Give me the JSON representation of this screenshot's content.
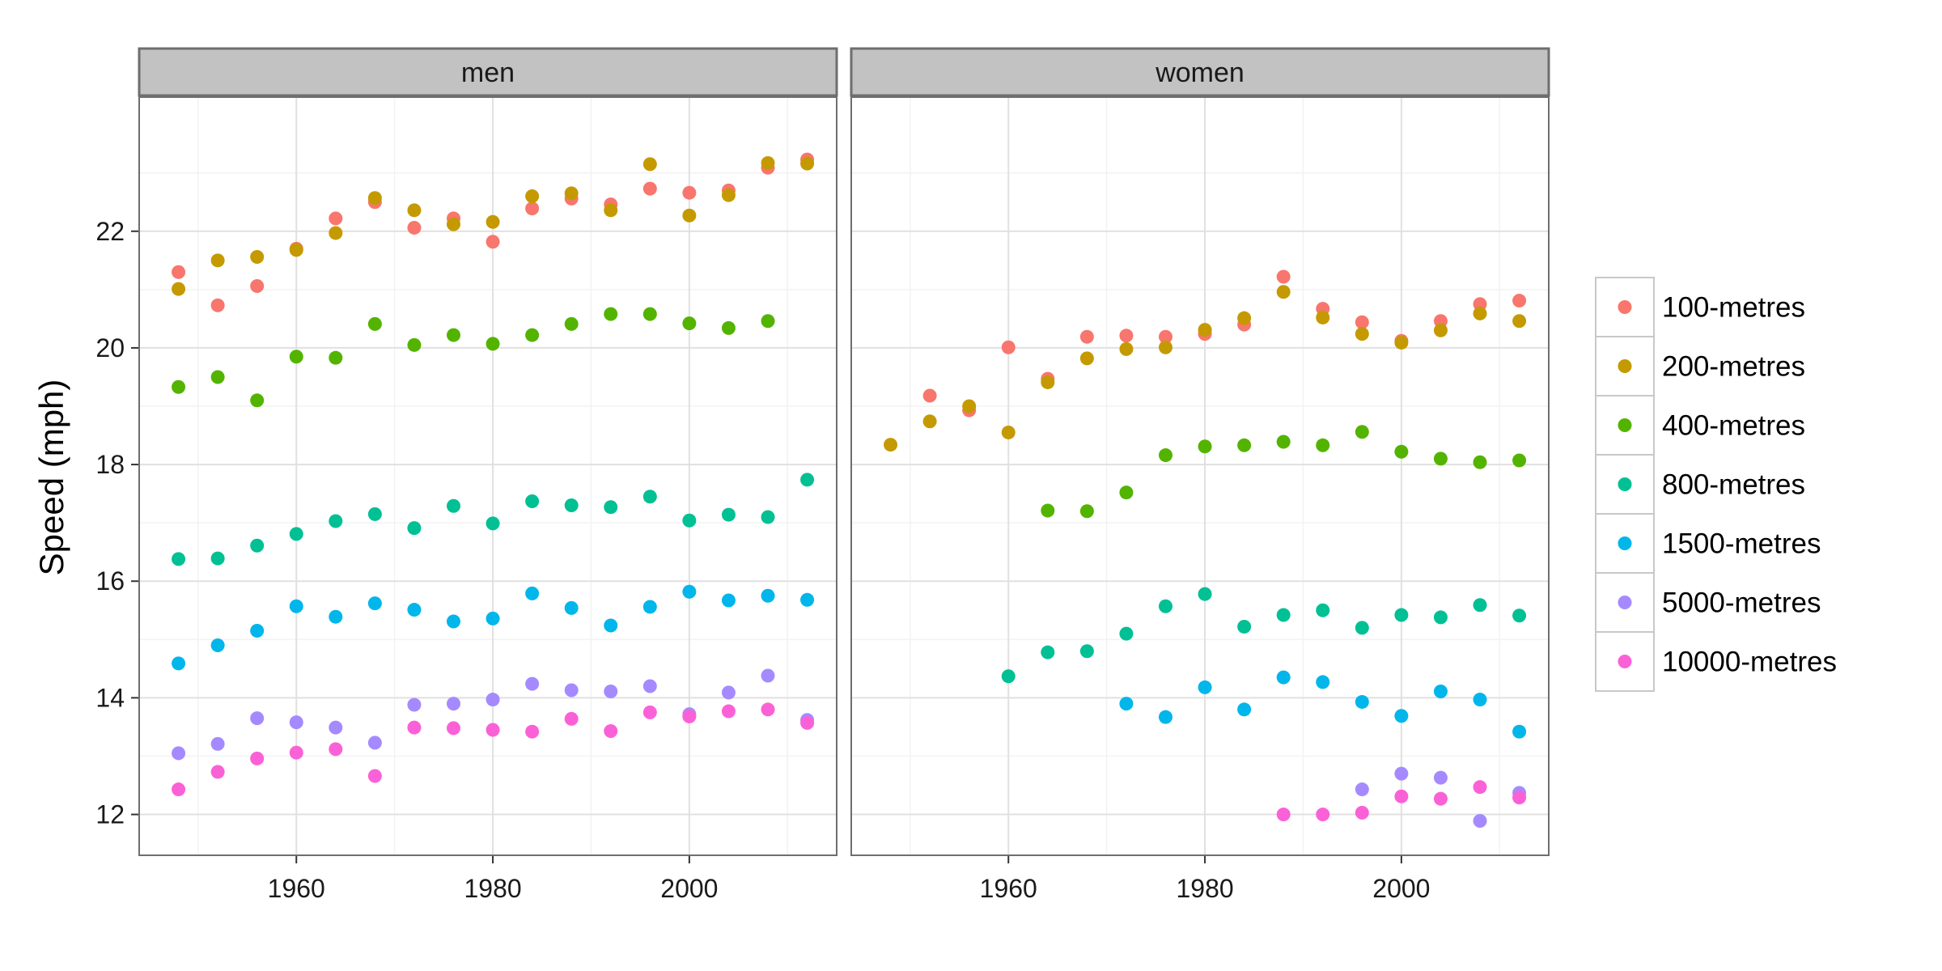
{
  "chart_data": {
    "type": "scatter",
    "facet_by": "sex",
    "panels": [
      "men",
      "women"
    ],
    "ylabel": "Speed (mph)",
    "xlabel": "",
    "xlim": [
      1944,
      2015
    ],
    "ylim": [
      11.3,
      24.3
    ],
    "x_ticks": [
      1960,
      1980,
      2000
    ],
    "y_ticks": [
      12,
      14,
      16,
      18,
      20,
      22
    ],
    "grid": true,
    "legend_position": "right",
    "series": [
      {
        "name": "100-metres",
        "color": "#F8766D",
        "men": [
          [
            1948,
            21.3
          ],
          [
            1952,
            20.73
          ],
          [
            1956,
            21.06
          ],
          [
            1960,
            21.7
          ],
          [
            1964,
            22.22
          ],
          [
            1968,
            22.5
          ],
          [
            1972,
            22.06
          ],
          [
            1976,
            22.22
          ],
          [
            1980,
            21.82
          ],
          [
            1984,
            22.39
          ],
          [
            1988,
            22.56
          ],
          [
            1992,
            22.46
          ],
          [
            1996,
            22.73
          ],
          [
            2000,
            22.66
          ],
          [
            2004,
            22.7
          ],
          [
            2008,
            23.09
          ],
          [
            2012,
            23.23
          ]
        ],
        "women": [
          [
            1952,
            19.18
          ],
          [
            1956,
            18.93
          ],
          [
            1960,
            20.01
          ],
          [
            1964,
            19.47
          ],
          [
            1968,
            20.19
          ],
          [
            1972,
            20.21
          ],
          [
            1976,
            20.19
          ],
          [
            1980,
            20.24
          ],
          [
            1984,
            20.4
          ],
          [
            1988,
            21.22
          ],
          [
            1992,
            20.67
          ],
          [
            1996,
            20.44
          ],
          [
            2000,
            20.12
          ],
          [
            2004,
            20.46
          ],
          [
            2008,
            20.75
          ],
          [
            2012,
            20.81
          ]
        ]
      },
      {
        "name": "200-metres",
        "color": "#C49A00",
        "men": [
          [
            1948,
            21.01
          ],
          [
            1952,
            21.5
          ],
          [
            1956,
            21.56
          ],
          [
            1960,
            21.68
          ],
          [
            1964,
            21.97
          ],
          [
            1968,
            22.57
          ],
          [
            1972,
            22.36
          ],
          [
            1976,
            22.12
          ],
          [
            1980,
            22.16
          ],
          [
            1984,
            22.6
          ],
          [
            1988,
            22.65
          ],
          [
            1992,
            22.36
          ],
          [
            1996,
            23.15
          ],
          [
            2000,
            22.27
          ],
          [
            2004,
            22.62
          ],
          [
            2008,
            23.17
          ],
          [
            2012,
            23.16
          ]
        ],
        "women": [
          [
            1948,
            18.34
          ],
          [
            1952,
            18.74
          ],
          [
            1956,
            19.0
          ],
          [
            1960,
            18.55
          ],
          [
            1964,
            19.41
          ],
          [
            1968,
            19.82
          ],
          [
            1972,
            19.98
          ],
          [
            1976,
            20.01
          ],
          [
            1980,
            20.31
          ],
          [
            1984,
            20.51
          ],
          [
            1988,
            20.96
          ],
          [
            1992,
            20.52
          ],
          [
            1996,
            20.24
          ],
          [
            2000,
            20.09
          ],
          [
            2004,
            20.3
          ],
          [
            2008,
            20.59
          ],
          [
            2012,
            20.46
          ]
        ]
      },
      {
        "name": "400-metres",
        "color": "#53B400",
        "men": [
          [
            1948,
            19.33
          ],
          [
            1952,
            19.5
          ],
          [
            1956,
            19.1
          ],
          [
            1960,
            19.85
          ],
          [
            1964,
            19.83
          ],
          [
            1968,
            20.41
          ],
          [
            1972,
            20.05
          ],
          [
            1976,
            20.22
          ],
          [
            1980,
            20.07
          ],
          [
            1984,
            20.22
          ],
          [
            1988,
            20.41
          ],
          [
            1992,
            20.58
          ],
          [
            1996,
            20.58
          ],
          [
            2000,
            20.42
          ],
          [
            2004,
            20.34
          ],
          [
            2008,
            20.46
          ]
        ],
        "women": [
          [
            1964,
            17.21
          ],
          [
            1968,
            17.2
          ],
          [
            1972,
            17.52
          ],
          [
            1976,
            18.16
          ],
          [
            1980,
            18.31
          ],
          [
            1984,
            18.33
          ],
          [
            1988,
            18.39
          ],
          [
            1992,
            18.33
          ],
          [
            1996,
            18.56
          ],
          [
            2000,
            18.22
          ],
          [
            2004,
            18.1
          ],
          [
            2008,
            18.04
          ],
          [
            2012,
            18.07
          ]
        ]
      },
      {
        "name": "800-metres",
        "color": "#00C094",
        "men": [
          [
            1948,
            16.38
          ],
          [
            1952,
            16.39
          ],
          [
            1956,
            16.61
          ],
          [
            1960,
            16.81
          ],
          [
            1964,
            17.03
          ],
          [
            1968,
            17.15
          ],
          [
            1972,
            16.91
          ],
          [
            1976,
            17.29
          ],
          [
            1980,
            16.99
          ],
          [
            1984,
            17.37
          ],
          [
            1988,
            17.3
          ],
          [
            1992,
            17.27
          ],
          [
            1996,
            17.45
          ],
          [
            2000,
            17.04
          ],
          [
            2004,
            17.14
          ],
          [
            2008,
            17.1
          ],
          [
            2012,
            17.74
          ]
        ],
        "women": [
          [
            1960,
            14.37
          ],
          [
            1964,
            14.78
          ],
          [
            1968,
            14.8
          ],
          [
            1972,
            15.1
          ],
          [
            1976,
            15.57
          ],
          [
            1980,
            15.78
          ],
          [
            1984,
            15.22
          ],
          [
            1988,
            15.42
          ],
          [
            1992,
            15.5
          ],
          [
            1996,
            15.2
          ],
          [
            2000,
            15.42
          ],
          [
            2004,
            15.38
          ],
          [
            2008,
            15.59
          ],
          [
            2012,
            15.41
          ]
        ]
      },
      {
        "name": "1500-metres",
        "color": "#00B6EB",
        "men": [
          [
            1948,
            14.59
          ],
          [
            1952,
            14.9
          ],
          [
            1956,
            15.15
          ],
          [
            1960,
            15.57
          ],
          [
            1964,
            15.39
          ],
          [
            1968,
            15.62
          ],
          [
            1972,
            15.51
          ],
          [
            1976,
            15.31
          ],
          [
            1980,
            15.36
          ],
          [
            1984,
            15.79
          ],
          [
            1988,
            15.54
          ],
          [
            1992,
            15.24
          ],
          [
            1996,
            15.56
          ],
          [
            2000,
            15.82
          ],
          [
            2004,
            15.67
          ],
          [
            2008,
            15.75
          ],
          [
            2012,
            15.68
          ]
        ],
        "women": [
          [
            1972,
            13.9
          ],
          [
            1976,
            13.67
          ],
          [
            1980,
            14.18
          ],
          [
            1984,
            13.8
          ],
          [
            1988,
            14.35
          ],
          [
            1992,
            14.27
          ],
          [
            1996,
            13.93
          ],
          [
            2000,
            13.69
          ],
          [
            2004,
            14.11
          ],
          [
            2008,
            13.97
          ],
          [
            2012,
            13.42
          ]
        ]
      },
      {
        "name": "5000-metres",
        "color": "#A58AFF",
        "men": [
          [
            1948,
            13.05
          ],
          [
            1952,
            13.21
          ],
          [
            1956,
            13.65
          ],
          [
            1960,
            13.58
          ],
          [
            1964,
            13.49
          ],
          [
            1968,
            13.23
          ],
          [
            1972,
            13.88
          ],
          [
            1976,
            13.9
          ],
          [
            1980,
            13.97
          ],
          [
            1984,
            14.24
          ],
          [
            1988,
            14.13
          ],
          [
            1992,
            14.11
          ],
          [
            1996,
            14.2
          ],
          [
            2000,
            13.72
          ],
          [
            2004,
            14.09
          ],
          [
            2008,
            14.38
          ],
          [
            2012,
            13.62
          ]
        ],
        "women": [
          [
            1996,
            12.43
          ],
          [
            2000,
            12.7
          ],
          [
            2004,
            12.63
          ],
          [
            2008,
            11.89
          ],
          [
            2012,
            12.37
          ]
        ]
      },
      {
        "name": "10000-metres",
        "color": "#FB61D7",
        "men": [
          [
            1948,
            12.43
          ],
          [
            1952,
            12.73
          ],
          [
            1956,
            12.96
          ],
          [
            1960,
            13.06
          ],
          [
            1964,
            13.12
          ],
          [
            1968,
            12.66
          ],
          [
            1972,
            13.49
          ],
          [
            1976,
            13.48
          ],
          [
            1980,
            13.45
          ],
          [
            1984,
            13.42
          ],
          [
            1988,
            13.64
          ],
          [
            1992,
            13.43
          ],
          [
            1996,
            13.75
          ],
          [
            2000,
            13.68
          ],
          [
            2004,
            13.77
          ],
          [
            2008,
            13.8
          ],
          [
            2012,
            13.57
          ]
        ],
        "women": [
          [
            1988,
            12.0
          ],
          [
            1992,
            12.0
          ],
          [
            1996,
            12.03
          ],
          [
            2000,
            12.31
          ],
          [
            2004,
            12.27
          ],
          [
            2008,
            12.47
          ],
          [
            2012,
            12.29
          ]
        ]
      }
    ]
  }
}
